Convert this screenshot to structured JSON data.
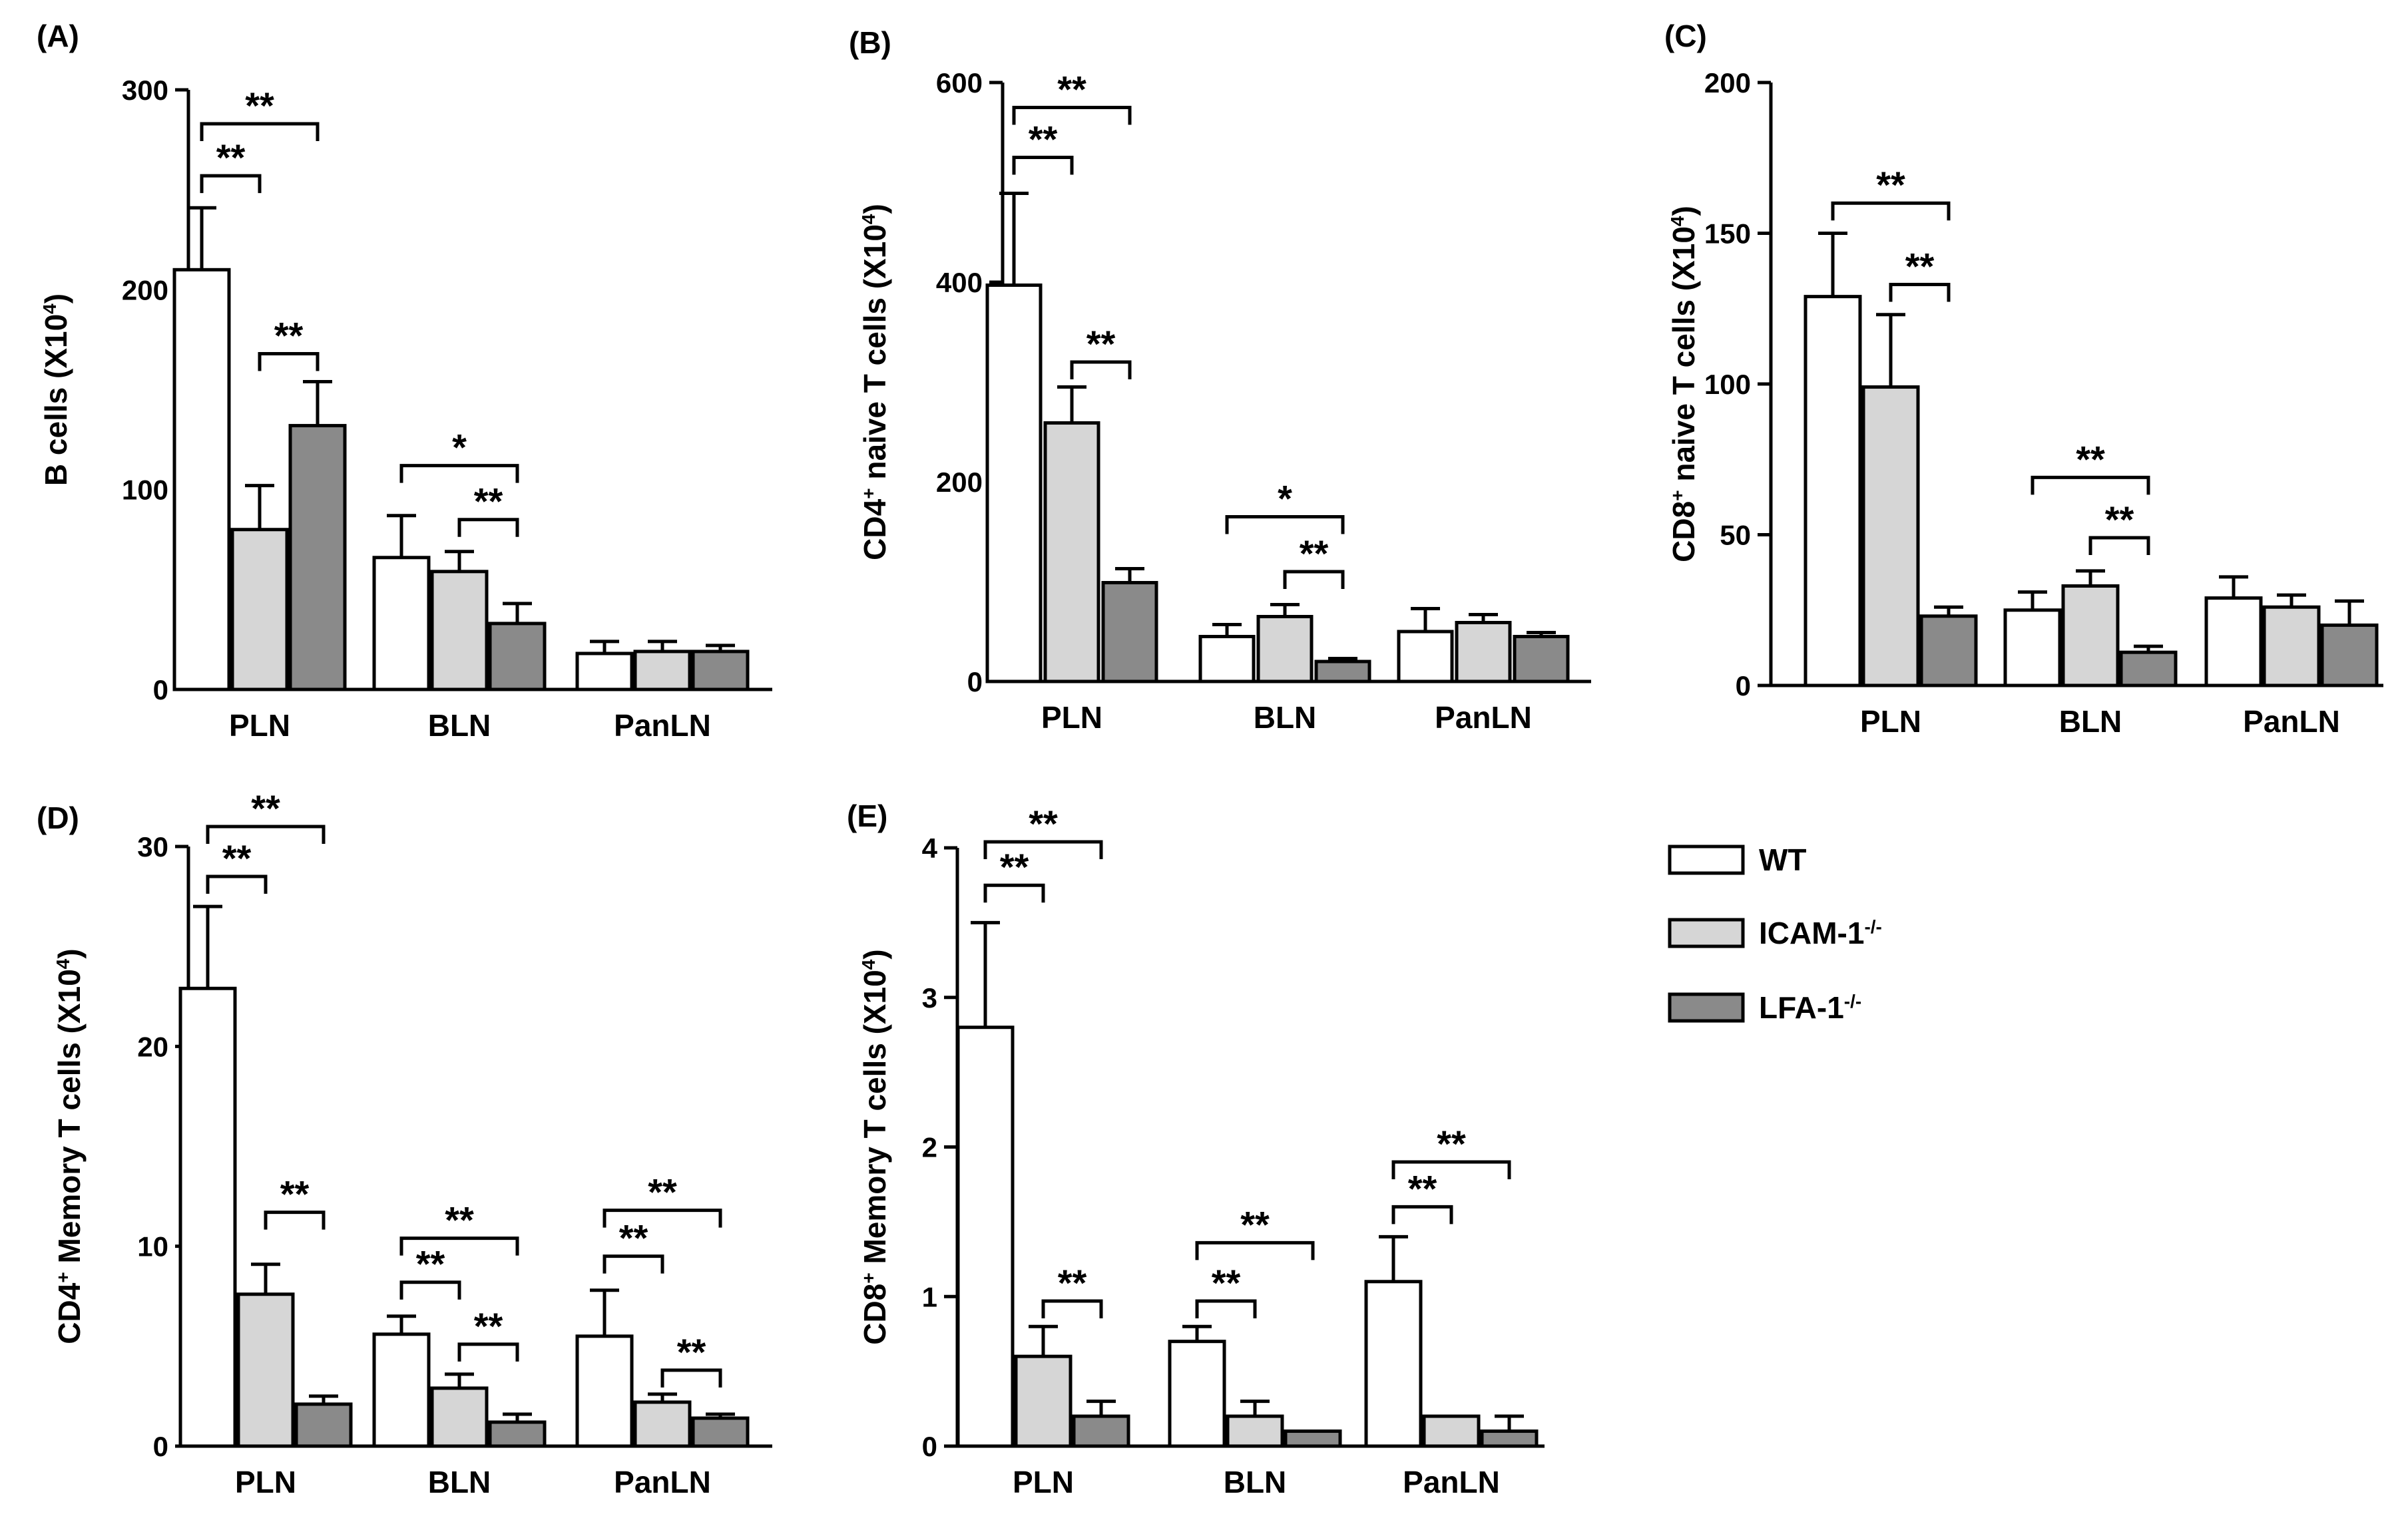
{
  "legend": [
    {
      "name": "WT",
      "color": "#ffffff"
    },
    {
      "name": "ICAM-1",
      "sup": "-/-",
      "color": "#d6d6d6"
    },
    {
      "name": "LFA-1",
      "sup": "-/-",
      "color": "#8a8a8a"
    }
  ],
  "chart_data": [
    {
      "type": "bar",
      "panel": "(A)",
      "ylabel": {
        "pre": "B cells (X10",
        "sup": "4",
        "post": ")"
      },
      "categories": [
        "PLN",
        "BLN",
        "PanLN"
      ],
      "ylim": [
        0,
        300
      ],
      "yticks": [
        0,
        100,
        200,
        300
      ],
      "series": [
        {
          "name": "WT",
          "values": [
            210,
            66,
            18
          ],
          "errors": [
            31,
            21,
            6
          ]
        },
        {
          "name": "ICAM-1-/-",
          "values": [
            80,
            59,
            19
          ],
          "errors": [
            22,
            10,
            5
          ]
        },
        {
          "name": "LFA-1-/-",
          "values": [
            132,
            33,
            19
          ],
          "errors": [
            22,
            10,
            3
          ]
        }
      ],
      "significance": [
        {
          "cat": 0,
          "from": 0,
          "to": 1,
          "y": 257,
          "label": "**"
        },
        {
          "cat": 0,
          "from": 0,
          "to": 2,
          "y": 283,
          "label": "**"
        },
        {
          "cat": 0,
          "from": 1,
          "to": 2,
          "y": 168,
          "label": "**"
        },
        {
          "cat": 1,
          "from": 0,
          "to": 2,
          "y": 112,
          "label": "*"
        },
        {
          "cat": 1,
          "from": 1,
          "to": 2,
          "y": 85,
          "label": "**"
        }
      ]
    },
    {
      "type": "bar",
      "panel": "(B)",
      "ylabel": {
        "pre": "CD4",
        "sup": "+",
        "mid": " naive T cells (X10",
        "sup2": "4",
        "post": ")"
      },
      "categories": [
        "PLN",
        "BLN",
        "PanLN"
      ],
      "ylim": [
        0,
        600
      ],
      "yticks": [
        0,
        200,
        400,
        600
      ],
      "series": [
        {
          "name": "WT",
          "values": [
            397,
            45,
            50
          ],
          "errors": [
            92,
            12,
            23
          ]
        },
        {
          "name": "ICAM-1-/-",
          "values": [
            259,
            65,
            59
          ],
          "errors": [
            36,
            12,
            8
          ]
        },
        {
          "name": "LFA-1-/-",
          "values": [
            99,
            20,
            45
          ],
          "errors": [
            14,
            3,
            4
          ]
        }
      ],
      "significance": [
        {
          "cat": 0,
          "from": 0,
          "to": 1,
          "y": 525,
          "label": "**"
        },
        {
          "cat": 0,
          "from": 0,
          "to": 2,
          "y": 575,
          "label": "**"
        },
        {
          "cat": 0,
          "from": 1,
          "to": 2,
          "y": 320,
          "label": "**"
        },
        {
          "cat": 1,
          "from": 0,
          "to": 2,
          "y": 165,
          "label": "*"
        },
        {
          "cat": 1,
          "from": 1,
          "to": 2,
          "y": 110,
          "label": "**"
        }
      ]
    },
    {
      "type": "bar",
      "panel": "(C)",
      "ylabel": {
        "pre": "CD8",
        "sup": "+",
        "mid": " naive T cells (X10",
        "sup2": "4",
        "post": ")"
      },
      "categories": [
        "PLN",
        "BLN",
        "PanLN"
      ],
      "ylim": [
        0,
        200
      ],
      "yticks": [
        0,
        50,
        100,
        150,
        200
      ],
      "series": [
        {
          "name": "WT",
          "values": [
            129,
            25,
            29
          ],
          "errors": [
            21,
            6,
            7
          ]
        },
        {
          "name": "ICAM-1-/-",
          "values": [
            99,
            33,
            26
          ],
          "errors": [
            24,
            5,
            4
          ]
        },
        {
          "name": "LFA-1-/-",
          "values": [
            23,
            11,
            20
          ],
          "errors": [
            3,
            2,
            8
          ]
        }
      ],
      "significance": [
        {
          "cat": 0,
          "from": 0,
          "to": 2,
          "y": 160,
          "label": "**"
        },
        {
          "cat": 0,
          "from": 1,
          "to": 2,
          "y": 133,
          "label": "**"
        },
        {
          "cat": 1,
          "from": 0,
          "to": 2,
          "y": 69,
          "label": "**"
        },
        {
          "cat": 1,
          "from": 1,
          "to": 2,
          "y": 49,
          "label": "**"
        }
      ]
    },
    {
      "type": "bar",
      "panel": "(D)",
      "ylabel": {
        "pre": "CD4",
        "sup": "+",
        "mid": " Memory T cells (X10",
        "sup2": "4",
        "post": ")"
      },
      "categories": [
        "PLN",
        "BLN",
        "PanLN"
      ],
      "ylim": [
        0,
        30
      ],
      "yticks": [
        0,
        10,
        20,
        30
      ],
      "series": [
        {
          "name": "WT",
          "values": [
            22.9,
            5.6,
            5.5
          ],
          "errors": [
            4.1,
            0.9,
            2.3
          ]
        },
        {
          "name": "ICAM-1-/-",
          "values": [
            7.6,
            2.9,
            2.2
          ],
          "errors": [
            1.5,
            0.7,
            0.4
          ]
        },
        {
          "name": "LFA-1-/-",
          "values": [
            2.1,
            1.2,
            1.4
          ],
          "errors": [
            0.4,
            0.4,
            0.2
          ]
        }
      ],
      "significance": [
        {
          "cat": 0,
          "from": 0,
          "to": 1,
          "y": 28.5,
          "label": "**"
        },
        {
          "cat": 0,
          "from": 0,
          "to": 2,
          "y": 31,
          "label": "**"
        },
        {
          "cat": 0,
          "from": 1,
          "to": 2,
          "y": 11.7,
          "label": "**"
        },
        {
          "cat": 1,
          "from": 0,
          "to": 1,
          "y": 8.2,
          "label": "**"
        },
        {
          "cat": 1,
          "from": 0,
          "to": 2,
          "y": 10.4,
          "label": "**"
        },
        {
          "cat": 1,
          "from": 1,
          "to": 2,
          "y": 5.1,
          "label": "**"
        },
        {
          "cat": 2,
          "from": 0,
          "to": 1,
          "y": 9.5,
          "label": "**"
        },
        {
          "cat": 2,
          "from": 0,
          "to": 2,
          "y": 11.8,
          "label": "**"
        },
        {
          "cat": 2,
          "from": 1,
          "to": 2,
          "y": 3.8,
          "label": "**"
        }
      ]
    },
    {
      "type": "bar",
      "panel": "(E)",
      "ylabel": {
        "pre": "CD8",
        "sup": "+",
        "mid": " Memory T cells (X10",
        "sup2": "4",
        "post": ")"
      },
      "categories": [
        "PLN",
        "BLN",
        "PanLN"
      ],
      "ylim": [
        0,
        4
      ],
      "yticks": [
        0,
        1,
        2,
        3,
        4
      ],
      "series": [
        {
          "name": "WT",
          "values": [
            2.8,
            0.7,
            1.1
          ],
          "errors": [
            0.7,
            0.1,
            0.3
          ]
        },
        {
          "name": "ICAM-1-/-",
          "values": [
            0.6,
            0.2,
            0.2
          ],
          "errors": [
            0.2,
            0.1,
            0.0
          ]
        },
        {
          "name": "LFA-1-/-",
          "values": [
            0.2,
            0.1,
            0.1
          ],
          "errors": [
            0.1,
            0.0,
            0.1
          ]
        }
      ],
      "significance": [
        {
          "cat": 0,
          "from": 0,
          "to": 1,
          "y": 3.75,
          "label": "**"
        },
        {
          "cat": 0,
          "from": 0,
          "to": 2,
          "y": 4.04,
          "label": "**"
        },
        {
          "cat": 0,
          "from": 1,
          "to": 2,
          "y": 0.97,
          "label": "**"
        },
        {
          "cat": 1,
          "from": 0,
          "to": 1,
          "y": 0.97,
          "label": "**"
        },
        {
          "cat": 1,
          "from": 0,
          "to": 2,
          "y": 1.36,
          "label": "**"
        },
        {
          "cat": 2,
          "from": 0,
          "to": 1,
          "y": 1.6,
          "label": "**"
        },
        {
          "cat": 2,
          "from": 0,
          "to": 2,
          "y": 1.9,
          "label": "**"
        }
      ]
    }
  ]
}
